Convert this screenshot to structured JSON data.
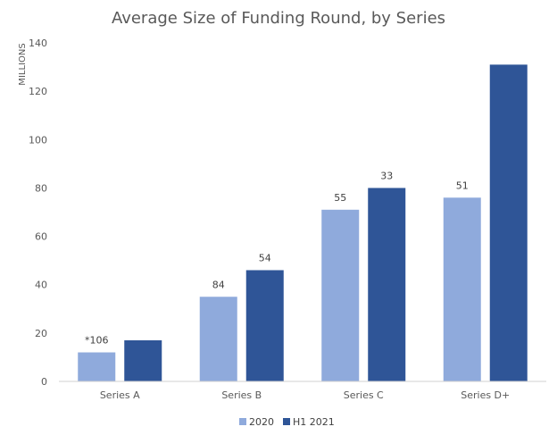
{
  "chart_data": {
    "type": "bar",
    "title": "Average Size of Funding Round, by Series",
    "ylabel": "MILLIONS",
    "xlabel": "",
    "ylim": [
      0,
      140
    ],
    "yticks": [
      0,
      20,
      40,
      60,
      80,
      100,
      120,
      140
    ],
    "grid": false,
    "legend_position": "bottom",
    "categories": [
      "Series A",
      "Series B",
      "Series C",
      "Series D+"
    ],
    "series": [
      {
        "name": "2020",
        "color": "#8FAADC",
        "values": [
          12,
          35,
          71,
          76
        ],
        "labels": [
          "*106",
          "84",
          "55",
          "51"
        ]
      },
      {
        "name": "H1 2021",
        "color": "#2F5597",
        "values": [
          17,
          46,
          80,
          131
        ],
        "labels": [
          "",
          "54",
          "33",
          ""
        ]
      }
    ]
  }
}
